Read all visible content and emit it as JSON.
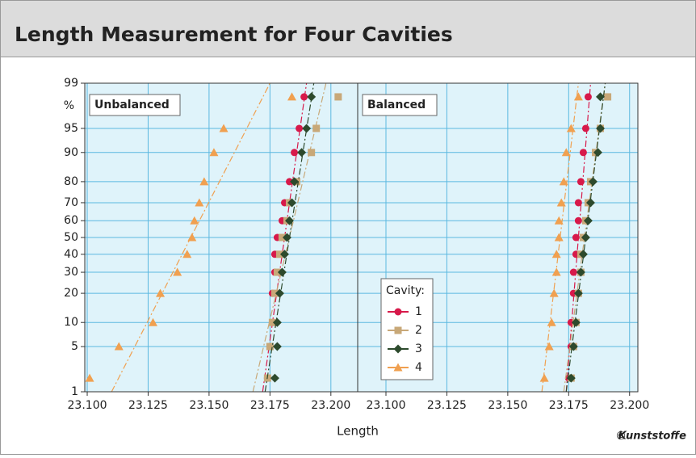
{
  "header": {
    "title": "Length Measurement for Four Cavities"
  },
  "x_label": "Length",
  "y_unit": "%",
  "legend_title": "Cavity:",
  "credit_symbol": "©",
  "credit": "Kunststoffe",
  "chart_data": [
    {
      "type": "probability",
      "title": "Unbalanced",
      "xlim": [
        23.099,
        23.211
      ],
      "ylim": [
        1,
        99
      ],
      "xticks": [
        {
          "value": 23.1,
          "label": "23.100"
        },
        23.125,
        {
          "value": 23.15,
          "label": "23.150"
        },
        23.175,
        {
          "value": 23.2,
          "label": "23.200"
        }
      ],
      "yticks": [
        1,
        5,
        10,
        20,
        30,
        40,
        50,
        60,
        70,
        80,
        90,
        95,
        99
      ],
      "grid": true,
      "series": [
        {
          "name": "1",
          "color": "#d7194a",
          "marker": "circle",
          "x": [
            23.174,
            23.175,
            23.176,
            23.176,
            23.177,
            23.177,
            23.178,
            23.18,
            23.181,
            23.183,
            23.185,
            23.187,
            23.189
          ],
          "values": [
            1.7,
            5,
            10,
            20,
            30,
            40,
            50,
            60,
            70,
            80,
            90,
            95,
            98.3
          ],
          "fit": [
            23.172,
            23.19
          ]
        },
        {
          "name": "2",
          "color": "#c8a878",
          "marker": "square",
          "x": [
            23.174,
            23.175,
            23.176,
            23.177,
            23.178,
            23.179,
            23.18,
            23.182,
            23.183,
            23.186,
            23.192,
            23.194,
            23.203
          ],
          "values": [
            1.7,
            5,
            10,
            20,
            30,
            40,
            50,
            60,
            70,
            80,
            90,
            95,
            98.3
          ],
          "fit": [
            23.168,
            23.198
          ]
        },
        {
          "name": "3",
          "color": "#2d4a2d",
          "marker": "diamond",
          "x": [
            23.177,
            23.178,
            23.178,
            23.179,
            23.18,
            23.181,
            23.182,
            23.183,
            23.184,
            23.185,
            23.188,
            23.19,
            23.192
          ],
          "values": [
            1.7,
            5,
            10,
            20,
            30,
            40,
            50,
            60,
            70,
            80,
            90,
            95,
            98.3
          ],
          "fit": [
            23.173,
            23.193
          ]
        },
        {
          "name": "4",
          "color": "#f0a050",
          "marker": "triangle",
          "x": [
            23.101,
            23.113,
            23.127,
            23.13,
            23.137,
            23.141,
            23.143,
            23.144,
            23.146,
            23.148,
            23.152,
            23.156,
            23.184
          ],
          "values": [
            1.7,
            5,
            10,
            20,
            30,
            40,
            50,
            60,
            70,
            80,
            90,
            95,
            98.3
          ],
          "fit": [
            23.11,
            23.175
          ]
        }
      ]
    },
    {
      "type": "probability",
      "title": "Balanced",
      "xlim": [
        23.0884,
        23.2034
      ],
      "ylim": [
        1,
        99
      ],
      "xticks": [
        {
          "value": 23.1,
          "label": "23.100"
        },
        23.125,
        {
          "value": 23.15,
          "label": "23.150"
        },
        23.175,
        {
          "value": 23.2,
          "label": "23.200"
        }
      ],
      "yticks": [
        1,
        5,
        10,
        20,
        30,
        40,
        50,
        60,
        70,
        80,
        90,
        95,
        99
      ],
      "grid": true,
      "series": [
        {
          "color": "#d7194a",
          "marker": "circle",
          "x": [
            23.175,
            23.176,
            23.176,
            23.177,
            23.177,
            23.178,
            23.178,
            23.179,
            23.179,
            23.18,
            23.181,
            23.182,
            23.183
          ],
          "values": [
            1.7,
            5,
            10,
            20,
            30,
            40,
            50,
            60,
            70,
            80,
            90,
            95,
            98.3
          ],
          "fit": [
            23.174,
            23.184
          ]
        },
        {
          "color": "#c8a878",
          "marker": "square",
          "x": [
            23.176,
            23.177,
            23.178,
            23.179,
            23.18,
            23.18,
            23.181,
            23.182,
            23.183,
            23.184,
            23.186,
            23.188,
            23.191
          ],
          "values": [
            1.7,
            5,
            10,
            20,
            30,
            40,
            50,
            60,
            70,
            80,
            90,
            95,
            98.3
          ],
          "fit": [
            23.173,
            23.19
          ]
        },
        {
          "color": "#2d4a2d",
          "marker": "diamond",
          "x": [
            23.176,
            23.177,
            23.178,
            23.179,
            23.18,
            23.181,
            23.182,
            23.183,
            23.184,
            23.185,
            23.187,
            23.188,
            23.188
          ],
          "values": [
            1.7,
            5,
            10,
            20,
            30,
            40,
            50,
            60,
            70,
            80,
            90,
            95,
            98.3
          ],
          "fit": [
            23.174,
            23.19
          ]
        },
        {
          "color": "#f0a050",
          "marker": "triangle",
          "x": [
            23.165,
            23.167,
            23.168,
            23.169,
            23.17,
            23.17,
            23.171,
            23.171,
            23.172,
            23.173,
            23.174,
            23.176,
            23.179
          ],
          "values": [
            1.7,
            5,
            10,
            20,
            30,
            40,
            50,
            60,
            70,
            80,
            90,
            95,
            98.3
          ],
          "fit": [
            23.164,
            23.179
          ]
        }
      ]
    }
  ]
}
